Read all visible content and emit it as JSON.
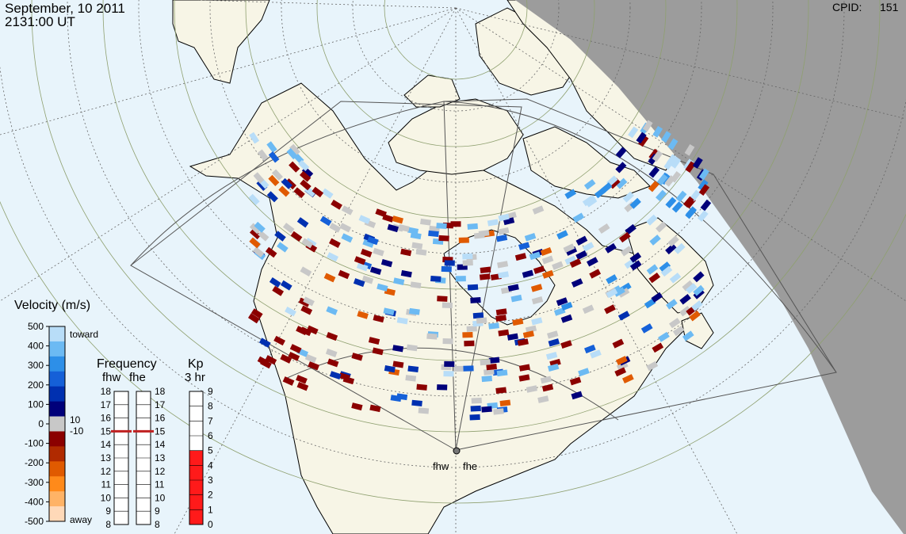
{
  "header": {
    "date": "September, 10 2011",
    "time": "2131:00 UT",
    "cpid_label": "CPID:",
    "cpid_value": "151"
  },
  "radars": [
    {
      "code": "fhw",
      "label": "fhw"
    },
    {
      "code": "fhe",
      "label": "fhe"
    }
  ],
  "velocity_scale": {
    "title": "Velocity (m/s)",
    "ticks": [
      "500",
      "400",
      "300",
      "200",
      "100",
      "0",
      "-100",
      "-200",
      "-300",
      "-400",
      "-500"
    ],
    "toward_label": "toward",
    "away_label": "away",
    "pos_cut": "10",
    "neg_cut": "-10",
    "colors": [
      "#ffd9b8",
      "#ffb366",
      "#ff8a1a",
      "#e05a00",
      "#b02a00",
      "#8b0000",
      "#c8c8c8",
      "#00007a",
      "#0030b0",
      "#1560d8",
      "#2d8fe8",
      "#6cbaf3",
      "#b8ddf8"
    ]
  },
  "frequency_panel": {
    "title": "Frequency",
    "radar_labels": [
      "fhw",
      "fhe"
    ],
    "ticks": [
      "18",
      "17",
      "16",
      "15",
      "14",
      "13",
      "12",
      "11",
      "10",
      "9",
      "8"
    ],
    "fhw_freq_mhz": 15.0,
    "fhe_freq_mhz": 15.0,
    "marker_color": "#c02020"
  },
  "kp_panel": {
    "title": "Kp",
    "subtitle": "3 hr",
    "ticks": [
      "9",
      "8",
      "7",
      "6",
      "5",
      "4",
      "3",
      "2",
      "1",
      "0"
    ],
    "kp_value": 5,
    "fill_color": "#ff1a1a"
  },
  "map": {
    "ocean_color": "#e8f4fb",
    "land_color": "#f7f5e6",
    "night_color": "#9c9c9c",
    "grid_color": "#8fa070"
  }
}
